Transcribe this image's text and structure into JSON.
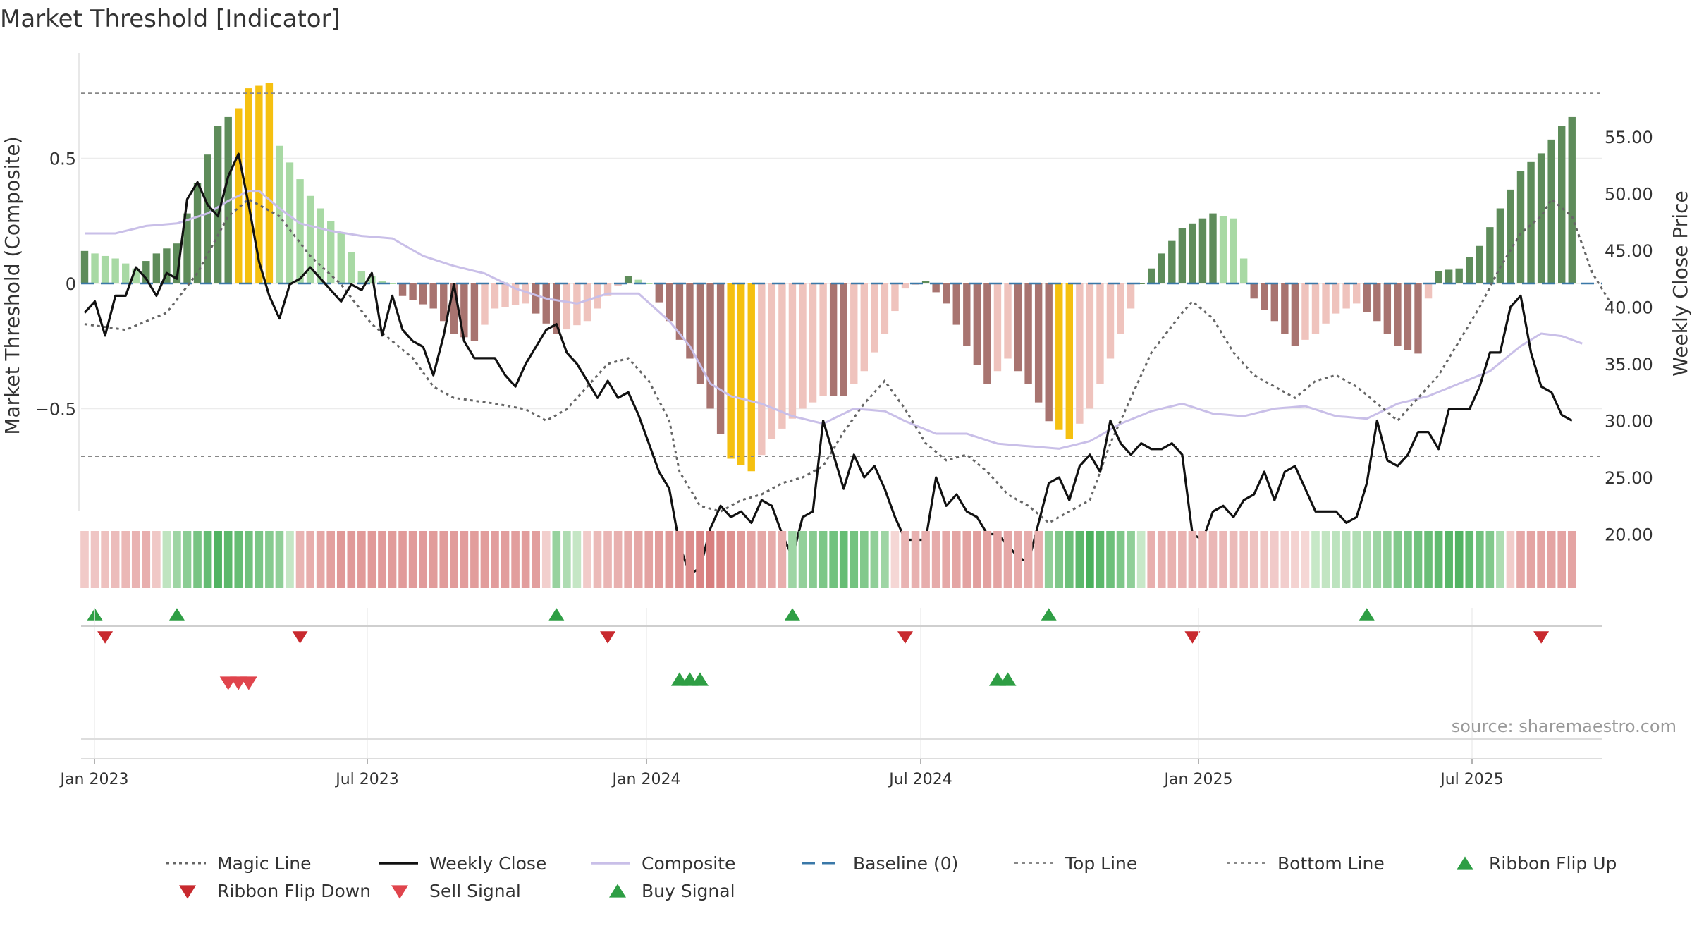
{
  "title": "Market Threshold [Indicator]",
  "source": "source: sharemaestro.com",
  "colors": {
    "gold": "#f5c010",
    "green_dark": "#5e8c5a",
    "green_light": "#a8d9a4",
    "red_dark": "#a87470",
    "red_light": "#efc3bd",
    "composite": "#c9bfe8",
    "close": "#111111",
    "magic": "#666666",
    "baseline": "#3a78a8",
    "buy": "#2e9e44",
    "sell": "#d63a3a",
    "flip_down": "#c8292e"
  },
  "chart_data": {
    "type": "bar",
    "title": "Market Threshold [Indicator]",
    "x_start": "2023-01-01",
    "x_end": "2025-10-20",
    "x_ticks": [
      "Jan 2023",
      "Jul 2023",
      "Jan 2024",
      "Jul 2024",
      "Jan 2025",
      "Jul 2025"
    ],
    "ylabel_left": "Market Threshold (Composite)",
    "ylabel_right": "Weekly Close Price",
    "ylim_left": [
      -0.92,
      0.85
    ],
    "ylim_right": [
      13.4,
      56.5
    ],
    "left_ticks": [
      "0.5",
      "0",
      "−0.5"
    ],
    "left_tick_values": [
      0.5,
      0,
      -0.5
    ],
    "right_ticks": [
      "55.00",
      "50.00",
      "45.00",
      "40.00",
      "35.00",
      "30.00",
      "25.00",
      "20.00"
    ],
    "right_tick_values": [
      55,
      50,
      45,
      40,
      35,
      30,
      25,
      20
    ],
    "top_line": 0.76,
    "bottom_line": -0.69,
    "baseline": 0,
    "grid": true,
    "legend_placement": "bottom",
    "hist_anchors": [
      [
        0,
        0.13
      ],
      [
        3,
        0.1
      ],
      [
        5,
        0.06
      ],
      [
        7,
        0.12
      ],
      [
        9,
        0.16
      ],
      [
        11,
        0.4
      ],
      [
        13,
        0.63
      ],
      [
        15,
        0.7
      ],
      [
        16,
        0.78
      ],
      [
        18,
        0.8
      ],
      [
        19,
        0.55
      ],
      [
        22,
        0.35
      ],
      [
        25,
        0.2
      ],
      [
        27,
        0.05
      ],
      [
        29,
        0.01
      ],
      [
        30,
        0
      ],
      [
        31,
        -0.05
      ],
      [
        34,
        -0.1
      ],
      [
        36,
        -0.2
      ],
      [
        38,
        -0.23
      ],
      [
        40,
        -0.1
      ],
      [
        43,
        -0.08
      ],
      [
        46,
        -0.2
      ],
      [
        49,
        -0.15
      ],
      [
        51,
        -0.05
      ],
      [
        53,
        0.03
      ],
      [
        55,
        0
      ],
      [
        57,
        -0.15
      ],
      [
        59,
        -0.3
      ],
      [
        61,
        -0.5
      ],
      [
        63,
        -0.7
      ],
      [
        65,
        -0.75
      ],
      [
        67,
        -0.62
      ],
      [
        70,
        -0.5
      ],
      [
        72,
        -0.45
      ],
      [
        74,
        -0.45
      ],
      [
        76,
        -0.35
      ],
      [
        78,
        -0.2
      ],
      [
        80,
        -0.02
      ],
      [
        82,
        0.01
      ],
      [
        84,
        -0.08
      ],
      [
        86,
        -0.25
      ],
      [
        88,
        -0.4
      ],
      [
        90,
        -0.3
      ],
      [
        92,
        -0.4
      ],
      [
        94,
        -0.55
      ],
      [
        96,
        -0.62
      ],
      [
        98,
        -0.5
      ],
      [
        100,
        -0.3
      ],
      [
        102,
        -0.1
      ],
      [
        103,
        0
      ],
      [
        105,
        0.12
      ],
      [
        107,
        0.22
      ],
      [
        110,
        0.28
      ],
      [
        112,
        0.26
      ],
      [
        113,
        0.1
      ],
      [
        114,
        -0.06
      ],
      [
        116,
        -0.15
      ],
      [
        118,
        -0.25
      ],
      [
        120,
        -0.2
      ],
      [
        122,
        -0.12
      ],
      [
        124,
        -0.08
      ],
      [
        126,
        -0.15
      ],
      [
        128,
        -0.25
      ],
      [
        130,
        -0.28
      ],
      [
        131,
        -0.06
      ],
      [
        132,
        0.05
      ],
      [
        134,
        0.06
      ],
      [
        136,
        0.15
      ],
      [
        138,
        0.3
      ],
      [
        140,
        0.45
      ],
      [
        142,
        0.52
      ],
      [
        144,
        0.63
      ],
      [
        146,
        0.7
      ],
      [
        148,
        0.63
      ],
      [
        150,
        0.4
      ],
      [
        152,
        0.05
      ],
      [
        153,
        -0.05
      ]
    ],
    "gold_bars": [
      [
        15,
        18
      ],
      [
        63,
        65
      ],
      [
        95,
        96
      ]
    ],
    "histogram_color_rule": "gold = extreme; dark green/dark red = rising magnitude; light green/light red = fading magnitude",
    "close_anchors": [
      [
        0,
        39.5
      ],
      [
        1,
        40.5
      ],
      [
        2,
        37.5
      ],
      [
        3,
        41
      ],
      [
        4,
        41
      ],
      [
        5,
        43.5
      ],
      [
        6,
        42.5
      ],
      [
        7,
        41
      ],
      [
        8,
        43
      ],
      [
        9,
        42.5
      ],
      [
        10,
        49.5
      ],
      [
        11,
        51
      ],
      [
        12,
        49
      ],
      [
        13,
        48
      ],
      [
        14,
        51.5
      ],
      [
        15,
        53.5
      ],
      [
        16,
        49
      ],
      [
        17,
        44
      ],
      [
        18,
        41
      ],
      [
        19,
        39
      ],
      [
        20,
        42
      ],
      [
        21,
        42.5
      ],
      [
        22,
        43.5
      ],
      [
        23,
        42.5
      ],
      [
        24,
        41.5
      ],
      [
        25,
        40.5
      ],
      [
        26,
        42
      ],
      [
        27,
        41.5
      ],
      [
        28,
        43
      ],
      [
        29,
        37.5
      ],
      [
        30,
        41
      ],
      [
        31,
        38
      ],
      [
        32,
        37
      ],
      [
        33,
        36.5
      ],
      [
        34,
        34
      ],
      [
        35,
        37.5
      ],
      [
        36,
        42
      ],
      [
        37,
        37
      ],
      [
        38,
        35.5
      ],
      [
        39,
        35.5
      ],
      [
        40,
        35.5
      ],
      [
        41,
        34
      ],
      [
        42,
        33
      ],
      [
        43,
        35
      ],
      [
        44,
        36.5
      ],
      [
        45,
        38
      ],
      [
        46,
        38.5
      ],
      [
        47,
        36
      ],
      [
        48,
        35
      ],
      [
        49,
        33.5
      ],
      [
        50,
        32
      ],
      [
        51,
        33.5
      ],
      [
        52,
        32
      ],
      [
        53,
        32.5
      ],
      [
        54,
        30.5
      ],
      [
        55,
        28
      ],
      [
        56,
        25.5
      ],
      [
        57,
        24
      ],
      [
        58,
        19
      ],
      [
        59,
        16.5
      ],
      [
        60,
        17
      ],
      [
        61,
        20.5
      ],
      [
        62,
        22.5
      ],
      [
        63,
        21.5
      ],
      [
        64,
        22
      ],
      [
        65,
        21
      ],
      [
        66,
        23
      ],
      [
        67,
        22.5
      ],
      [
        68,
        20
      ],
      [
        69,
        18
      ],
      [
        70,
        21.5
      ],
      [
        71,
        22
      ],
      [
        72,
        30
      ],
      [
        73,
        27
      ],
      [
        74,
        24
      ],
      [
        75,
        27
      ],
      [
        76,
        25
      ],
      [
        77,
        26
      ],
      [
        78,
        24
      ],
      [
        79,
        21.5
      ],
      [
        80,
        19.5
      ],
      [
        81,
        19.5
      ],
      [
        82,
        19.5
      ],
      [
        83,
        25
      ],
      [
        84,
        22.5
      ],
      [
        85,
        23.5
      ],
      [
        86,
        22
      ],
      [
        87,
        21.5
      ],
      [
        88,
        20
      ],
      [
        89,
        20
      ],
      [
        90,
        19
      ],
      [
        91,
        18
      ],
      [
        92,
        17.5
      ],
      [
        93,
        21
      ],
      [
        94,
        24.5
      ],
      [
        95,
        25
      ],
      [
        96,
        23
      ],
      [
        97,
        26
      ],
      [
        98,
        27
      ],
      [
        99,
        25.5
      ],
      [
        100,
        30
      ],
      [
        101,
        28
      ],
      [
        102,
        27
      ],
      [
        103,
        28
      ],
      [
        104,
        27.5
      ],
      [
        105,
        27.5
      ],
      [
        106,
        28
      ],
      [
        107,
        27
      ],
      [
        108,
        20
      ],
      [
        109,
        19.5
      ],
      [
        110,
        22
      ],
      [
        111,
        22.5
      ],
      [
        112,
        21.5
      ],
      [
        113,
        23
      ],
      [
        114,
        23.5
      ],
      [
        115,
        25.5
      ],
      [
        116,
        23
      ],
      [
        117,
        25.5
      ],
      [
        118,
        26
      ],
      [
        119,
        24
      ],
      [
        120,
        22
      ],
      [
        121,
        22
      ],
      [
        122,
        22
      ],
      [
        123,
        21
      ],
      [
        124,
        21.5
      ],
      [
        125,
        24.5
      ],
      [
        126,
        30
      ],
      [
        127,
        26.5
      ],
      [
        128,
        26
      ],
      [
        129,
        27
      ],
      [
        130,
        29
      ],
      [
        131,
        29
      ],
      [
        132,
        27.5
      ],
      [
        133,
        31
      ],
      [
        134,
        31
      ],
      [
        135,
        31
      ],
      [
        136,
        33
      ],
      [
        137,
        36
      ],
      [
        138,
        36
      ],
      [
        139,
        40
      ],
      [
        140,
        41
      ],
      [
        141,
        36
      ],
      [
        142,
        33
      ],
      [
        143,
        32.5
      ],
      [
        144,
        30.5
      ],
      [
        145,
        30
      ]
    ],
    "magic_anchors": [
      [
        0,
        38.5
      ],
      [
        4,
        38
      ],
      [
        8,
        39.5
      ],
      [
        11,
        43
      ],
      [
        14,
        48
      ],
      [
        16,
        49.5
      ],
      [
        19,
        48
      ],
      [
        22,
        44.5
      ],
      [
        25,
        42
      ],
      [
        28,
        38.5
      ],
      [
        30,
        37
      ],
      [
        32,
        35.5
      ],
      [
        34,
        33
      ],
      [
        36,
        32
      ],
      [
        40,
        31.5
      ],
      [
        43,
        31
      ],
      [
        45,
        30
      ],
      [
        47,
        31
      ],
      [
        49,
        33
      ],
      [
        51,
        35
      ],
      [
        53,
        35.5
      ],
      [
        55,
        33.5
      ],
      [
        57,
        30
      ],
      [
        58,
        25.5
      ],
      [
        60,
        22.5
      ],
      [
        62,
        22
      ],
      [
        64,
        23
      ],
      [
        66,
        23.5
      ],
      [
        68,
        24.5
      ],
      [
        70,
        25
      ],
      [
        72,
        26
      ],
      [
        74,
        29
      ],
      [
        76,
        31.5
      ],
      [
        78,
        33.5
      ],
      [
        80,
        31
      ],
      [
        82,
        28
      ],
      [
        84,
        26.5
      ],
      [
        86,
        27
      ],
      [
        88,
        25.5
      ],
      [
        90,
        23.5
      ],
      [
        92,
        22.5
      ],
      [
        94,
        21
      ],
      [
        96,
        22
      ],
      [
        98,
        23
      ],
      [
        100,
        28
      ],
      [
        102,
        32
      ],
      [
        104,
        36
      ],
      [
        107,
        39.5
      ],
      [
        108,
        40.5
      ],
      [
        110,
        39
      ],
      [
        112,
        36
      ],
      [
        114,
        34
      ],
      [
        116,
        33
      ],
      [
        118,
        32
      ],
      [
        120,
        33.5
      ],
      [
        122,
        34
      ],
      [
        124,
        33
      ],
      [
        126,
        31.5
      ],
      [
        128,
        30
      ],
      [
        130,
        32
      ],
      [
        132,
        34
      ],
      [
        134,
        37
      ],
      [
        136,
        40
      ],
      [
        138,
        43.5
      ],
      [
        140,
        46.5
      ],
      [
        142,
        48
      ],
      [
        143,
        49.5
      ],
      [
        145,
        48
      ],
      [
        147,
        43
      ],
      [
        149,
        40
      ]
    ],
    "composite_anchors": [
      [
        0,
        0.2
      ],
      [
        3,
        0.2
      ],
      [
        6,
        0.23
      ],
      [
        9,
        0.24
      ],
      [
        12,
        0.28
      ],
      [
        14,
        0.33
      ],
      [
        16,
        0.37
      ],
      [
        17,
        0.37
      ],
      [
        19,
        0.3
      ],
      [
        21,
        0.24
      ],
      [
        24,
        0.21
      ],
      [
        27,
        0.19
      ],
      [
        30,
        0.18
      ],
      [
        33,
        0.11
      ],
      [
        36,
        0.07
      ],
      [
        39,
        0.04
      ],
      [
        42,
        -0.02
      ],
      [
        45,
        -0.06
      ],
      [
        48,
        -0.08
      ],
      [
        51,
        -0.04
      ],
      [
        54,
        -0.04
      ],
      [
        57,
        -0.15
      ],
      [
        59,
        -0.25
      ],
      [
        61,
        -0.4
      ],
      [
        63,
        -0.45
      ],
      [
        66,
        -0.48
      ],
      [
        69,
        -0.53
      ],
      [
        72,
        -0.56
      ],
      [
        75,
        -0.5
      ],
      [
        78,
        -0.51
      ],
      [
        80,
        -0.55
      ],
      [
        83,
        -0.6
      ],
      [
        86,
        -0.6
      ],
      [
        89,
        -0.64
      ],
      [
        92,
        -0.65
      ],
      [
        95,
        -0.66
      ],
      [
        98,
        -0.63
      ],
      [
        101,
        -0.56
      ],
      [
        104,
        -0.51
      ],
      [
        107,
        -0.48
      ],
      [
        110,
        -0.52
      ],
      [
        113,
        -0.53
      ],
      [
        116,
        -0.5
      ],
      [
        119,
        -0.49
      ],
      [
        122,
        -0.53
      ],
      [
        125,
        -0.54
      ],
      [
        128,
        -0.48
      ],
      [
        131,
        -0.45
      ],
      [
        134,
        -0.4
      ],
      [
        137,
        -0.35
      ],
      [
        140,
        -0.25
      ],
      [
        142,
        -0.2
      ],
      [
        144,
        -0.21
      ],
      [
        146,
        -0.24
      ]
    ],
    "ribbon_anchors": [
      [
        0,
        -0.15
      ],
      [
        6,
        -0.4
      ],
      [
        9,
        0.3
      ],
      [
        13,
        0.85
      ],
      [
        19,
        0.4
      ],
      [
        21,
        -0.35
      ],
      [
        25,
        -0.6
      ],
      [
        44,
        -0.55
      ],
      [
        46,
        0.35
      ],
      [
        50,
        -0.3
      ],
      [
        58,
        -0.65
      ],
      [
        61,
        -0.85
      ],
      [
        65,
        -0.5
      ],
      [
        68,
        -0.4
      ],
      [
        69,
        0.3
      ],
      [
        74,
        0.7
      ],
      [
        78,
        0.3
      ],
      [
        80,
        -0.35
      ],
      [
        87,
        -0.55
      ],
      [
        93,
        -0.4
      ],
      [
        94,
        0.4
      ],
      [
        98,
        0.9
      ],
      [
        102,
        0.4
      ],
      [
        104,
        -0.4
      ],
      [
        112,
        -0.3
      ],
      [
        125,
        0.2
      ],
      [
        128,
        0.5
      ],
      [
        134,
        0.85
      ],
      [
        137,
        0.5
      ],
      [
        140,
        -0.45
      ],
      [
        141,
        -0.5
      ]
    ],
    "ribbon_up_weeks": [
      1,
      9,
      46,
      69,
      94,
      125
    ],
    "ribbon_down_weeks": [
      2,
      21,
      51,
      80,
      108,
      142
    ],
    "sell_signal_weeks": [
      14,
      15,
      16
    ],
    "buy_signal_weeks": [
      58,
      59,
      60,
      89,
      90
    ]
  },
  "legend": [
    {
      "label": "Magic Line",
      "kind": "dotted",
      "color": "#666666"
    },
    {
      "label": "Weekly Close",
      "kind": "solid",
      "color": "#111111"
    },
    {
      "label": "Composite",
      "kind": "solid",
      "color": "#c9bfe8"
    },
    {
      "label": "Baseline (0)",
      "kind": "dashed",
      "color": "#3a78a8"
    },
    {
      "label": "Top Line",
      "kind": "dashed-thin",
      "color": "#888888"
    },
    {
      "label": "Bottom Line",
      "kind": "dashed-thin",
      "color": "#888888"
    },
    {
      "label": "Ribbon Flip Up",
      "kind": "tri-up",
      "color": "#2e9e44"
    },
    {
      "label": "Ribbon Flip Down",
      "kind": "tri-down",
      "color": "#c8292e"
    },
    {
      "label": "Sell Signal",
      "kind": "tri-down",
      "color": "#e0444c"
    },
    {
      "label": "Buy Signal",
      "kind": "tri-up",
      "color": "#2e9e44"
    }
  ]
}
